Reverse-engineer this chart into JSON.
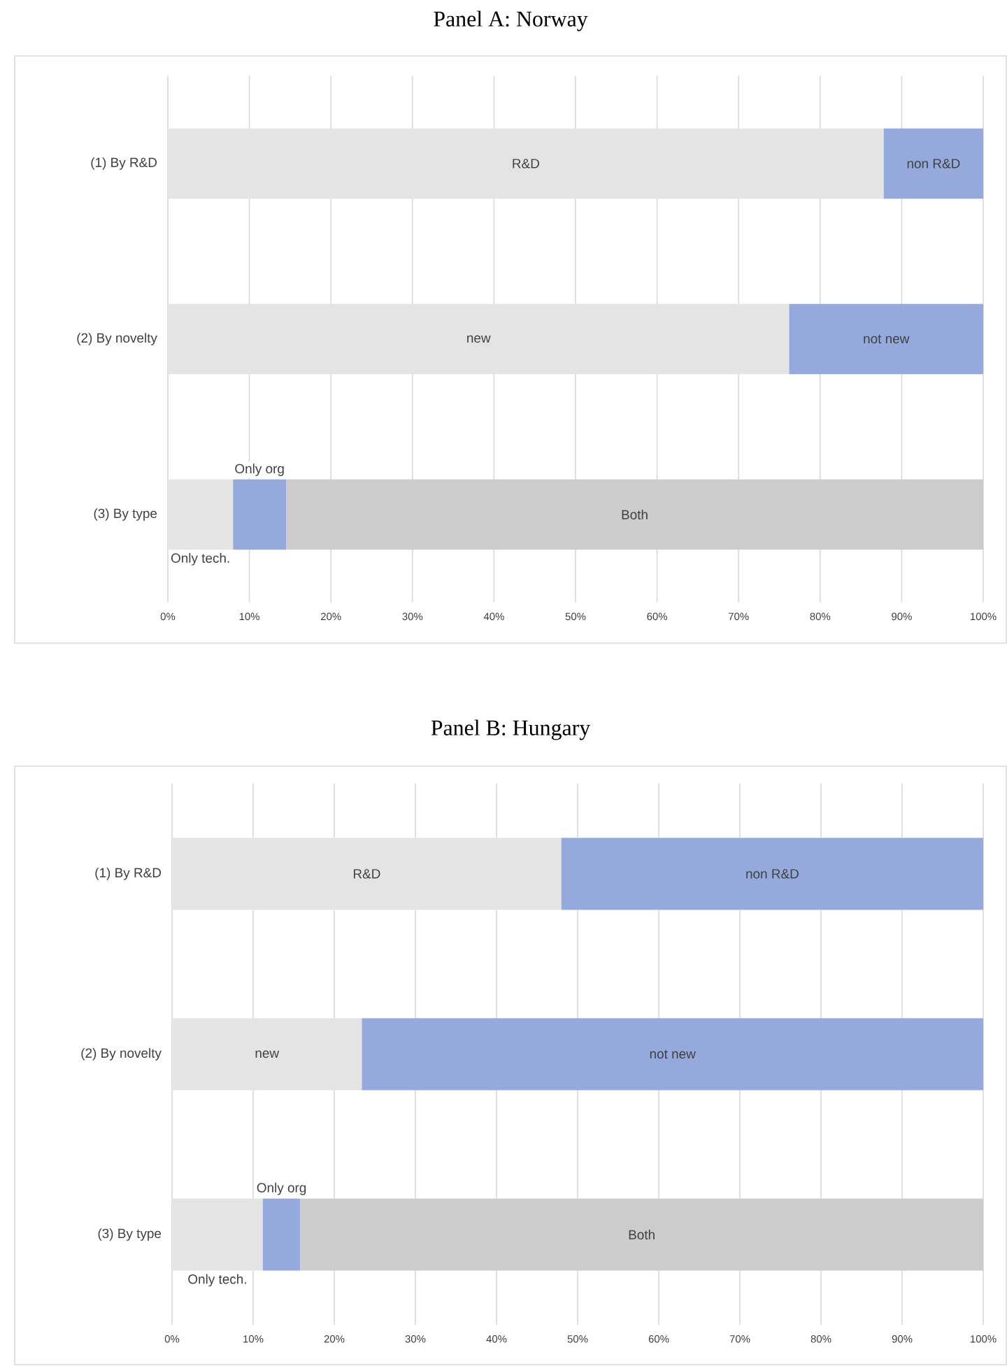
{
  "chart_data": [
    {
      "type": "bar",
      "orientation": "horizontal",
      "stacked": true,
      "title": "Panel A: Norway",
      "categories": [
        "(1) By R&D",
        "(2) By novelty",
        "(3) By type"
      ],
      "series": [
        {
          "color": "#e4e4e4",
          "values": [
            87.8,
            76.2,
            8
          ],
          "value_labels": [
            "R&D",
            "new",
            "Only tech."
          ]
        },
        {
          "color": "#96a9dc",
          "values": [
            12.2,
            23.8,
            6.5
          ],
          "value_labels": [
            "non R&D",
            "not new",
            "Only org"
          ]
        },
        {
          "color": "#cccccc",
          "values": [
            null,
            null,
            85.5
          ],
          "value_labels": [
            null,
            null,
            "Both"
          ]
        }
      ],
      "xlim": [
        0,
        100
      ],
      "xticks": [
        {
          "value": 0,
          "label": "0%"
        },
        {
          "value": 10,
          "label": "10%"
        },
        {
          "value": 20,
          "label": "20%"
        },
        {
          "value": 30,
          "label": "30%"
        },
        {
          "value": 40,
          "label": "40%"
        },
        {
          "value": 50,
          "label": "50%"
        },
        {
          "value": 60,
          "label": "60%"
        },
        {
          "value": 70,
          "label": "70%"
        },
        {
          "value": 80,
          "label": "80%"
        },
        {
          "value": 90,
          "label": "90%"
        },
        {
          "value": 100,
          "label": "100%"
        }
      ],
      "grid": "x"
    },
    {
      "type": "bar",
      "orientation": "horizontal",
      "stacked": true,
      "title": "Panel B: Hungary",
      "categories": [
        "(1) By R&D",
        "(2) By novelty",
        "(3) By type"
      ],
      "series": [
        {
          "color": "#e4e4e4",
          "values": [
            48,
            23.4,
            11.2
          ],
          "value_labels": [
            "R&D",
            "new",
            "Only tech."
          ]
        },
        {
          "color": "#96a9dc",
          "values": [
            52,
            76.6,
            4.6
          ],
          "value_labels": [
            "non R&D",
            "not new",
            "Only org"
          ]
        },
        {
          "color": "#cccccc",
          "values": [
            null,
            null,
            84.2
          ],
          "value_labels": [
            null,
            null,
            "Both"
          ]
        }
      ],
      "xlim": [
        0,
        100
      ],
      "xticks": [
        {
          "value": 0,
          "label": "0%"
        },
        {
          "value": 10,
          "label": "10%"
        },
        {
          "value": 20,
          "label": "20%"
        },
        {
          "value": 30,
          "label": "30%"
        },
        {
          "value": 40,
          "label": "40%"
        },
        {
          "value": 50,
          "label": "50%"
        },
        {
          "value": 60,
          "label": "60%"
        },
        {
          "value": 70,
          "label": "70%"
        },
        {
          "value": 80,
          "label": "80%"
        },
        {
          "value": 90,
          "label": "90%"
        },
        {
          "value": 100,
          "label": "100%"
        }
      ],
      "grid": "x"
    }
  ]
}
